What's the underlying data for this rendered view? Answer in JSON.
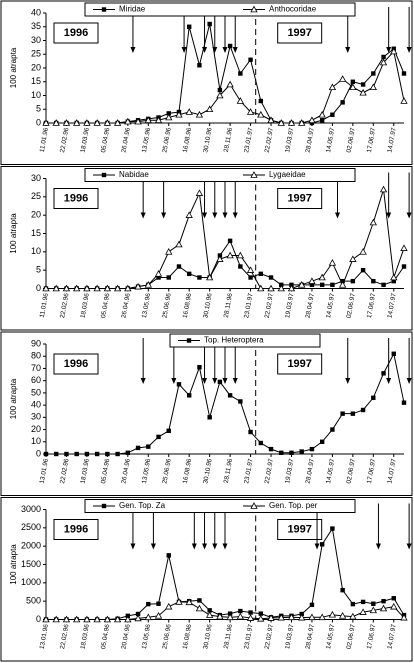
{
  "chart_data": [
    {
      "type": "line",
      "ylabel": "100 atrapta",
      "categories": [
        "11.01.96",
        null,
        "22.02.96",
        null,
        "18.03.96",
        null,
        "05.04.96",
        null,
        "26.04.96",
        null,
        "13.05.96",
        null,
        "25.06.96",
        null,
        "16.08.96",
        null,
        "30.10.96",
        null,
        "28.11.96",
        null,
        "23.01.97",
        null,
        "22.02.97",
        null,
        "19.03.97",
        null,
        "28.04.97",
        null,
        "14.05.97",
        null,
        "02.06.97",
        null,
        "17.06.97",
        null,
        "14.07.97",
        null
      ],
      "series": [
        {
          "name": "Miridae",
          "color": "#000000",
          "marker": "square",
          "values": [
            0,
            0,
            0,
            0,
            0,
            0,
            0,
            0,
            0.5,
            1,
            1.5,
            2,
            3.5,
            4,
            35,
            21,
            36,
            12,
            28,
            18,
            23,
            8,
            1,
            0,
            0,
            0,
            0,
            1,
            3,
            7.5,
            15,
            14,
            18,
            24,
            27,
            18
          ]
        },
        {
          "name": "Anthocoridae",
          "color": "#000000",
          "marker": "triangle",
          "values": [
            0,
            0,
            0,
            0,
            0,
            0,
            0,
            0,
            0.5,
            0.5,
            1,
            1,
            2,
            3,
            4,
            3,
            5,
            10,
            14,
            8,
            4,
            3,
            1,
            0,
            0,
            0,
            1,
            3,
            13,
            16,
            13,
            11,
            13,
            22,
            26,
            8
          ]
        }
      ],
      "ylim": [
        0,
        40
      ],
      "yticks": [
        0,
        5,
        10,
        15,
        20,
        25,
        30,
        35,
        40
      ],
      "year_labels": [
        "1996",
        "1997"
      ]
    },
    {
      "type": "line",
      "ylabel": "100 atrapta",
      "categories": [
        "11.01.96",
        null,
        "22.02.96",
        null,
        "18.03.96",
        null,
        "05.04.96",
        null,
        "26.04.96",
        null,
        "13.05.96",
        null,
        "25.06.96",
        null,
        "16.08.96",
        null,
        "30.10.96",
        null,
        "28.11.96",
        null,
        "23.01.97",
        null,
        "22.02.97",
        null,
        "19.03.97",
        null,
        "28.04.97",
        null,
        "14.05.97",
        null,
        "02.06.97",
        null,
        "17.06.97",
        null,
        "14.07.97",
        null
      ],
      "series": [
        {
          "name": "Nabidae",
          "color": "#000000",
          "marker": "square",
          "values": [
            0,
            0,
            0,
            0,
            0,
            0,
            0,
            0,
            0,
            0.5,
            1,
            3,
            3,
            6,
            4,
            3,
            3,
            9,
            13,
            6,
            3,
            4,
            3,
            1,
            1,
            1,
            1,
            1,
            1,
            2,
            2,
            5,
            2,
            1,
            2,
            6
          ]
        },
        {
          "name": "Lygaeidae",
          "color": "#000000",
          "marker": "triangle",
          "values": [
            0,
            0,
            0,
            0,
            0,
            0,
            0,
            0,
            0,
            0.5,
            1,
            4,
            10,
            12,
            20,
            26,
            3,
            8,
            9,
            9,
            5,
            0,
            0,
            0,
            0,
            1,
            2,
            3,
            7,
            1,
            8,
            10,
            18,
            27,
            3,
            11
          ]
        }
      ],
      "ylim": [
        0,
        30
      ],
      "yticks": [
        0,
        5,
        10,
        15,
        20,
        25,
        30
      ],
      "year_labels": [
        "1996",
        "1997"
      ]
    },
    {
      "type": "line",
      "ylabel": "100 atrapta",
      "categories": [
        "13.01.96",
        null,
        "22.02.96",
        null,
        "18.03.96",
        null,
        "05.04.96",
        null,
        "26.04.96",
        null,
        "13.05.96",
        null,
        "25.06.96",
        null,
        "16.08.96",
        null,
        "30.10.96",
        null,
        "28.11.96",
        null,
        "23.01.97",
        null,
        "22.02.97",
        null,
        "19.03.97",
        null,
        "28.04.97",
        null,
        "14.05.97",
        null,
        "02.06.97",
        null,
        "17.06.97",
        null,
        "14.07.97",
        null
      ],
      "series": [
        {
          "name": "Top. Heteroptera",
          "color": "#000000",
          "marker": "square",
          "values": [
            0,
            0,
            0,
            0,
            0,
            0,
            0,
            0,
            1,
            5,
            6,
            14,
            19,
            57,
            48,
            71,
            30,
            59,
            48,
            43,
            18,
            9,
            4,
            1,
            1,
            2,
            4,
            10,
            20,
            33,
            33,
            36,
            46,
            66,
            82,
            42
          ]
        }
      ],
      "ylim": [
        0,
        90
      ],
      "yticks": [
        0,
        10,
        20,
        30,
        40,
        50,
        60,
        70,
        80,
        90
      ],
      "year_labels": [
        "1996",
        "1997"
      ]
    },
    {
      "type": "line",
      "ylabel": "100 atrapta",
      "categories": [
        "13.01.96",
        null,
        "22.02.96",
        null,
        "18.03.96",
        null,
        "05.04.96",
        null,
        "20.04.96",
        null,
        "13.05.96",
        null,
        "25.06.96",
        null,
        "16.08.96",
        null,
        "30.10.96",
        null,
        "28.11.96",
        null,
        "23.01.97",
        null,
        "22.02.97",
        null,
        "19.03.97",
        null,
        "28.04.97",
        null,
        "14.05.97",
        null,
        "02.06.97",
        null,
        "17.06.97",
        null,
        "14.07.97",
        null
      ],
      "series": [
        {
          "name": "Gen. Top. Za",
          "color": "#000000",
          "marker": "square",
          "values": [
            0,
            0,
            0,
            0,
            0,
            0,
            0,
            20,
            100,
            150,
            420,
            430,
            1750,
            480,
            500,
            520,
            250,
            120,
            160,
            230,
            190,
            160,
            60,
            100,
            100,
            150,
            400,
            2050,
            2480,
            800,
            420,
            480,
            430,
            500,
            580,
            120
          ]
        },
        {
          "name": "Gen. Top. per",
          "color": "#000000",
          "marker": "triangle",
          "values": [
            0,
            0,
            0,
            0,
            0,
            0,
            0,
            0,
            0,
            30,
            60,
            100,
            350,
            480,
            470,
            300,
            120,
            80,
            60,
            80,
            40,
            20,
            40,
            50,
            60,
            50,
            60,
            60,
            130,
            100,
            80,
            200,
            250,
            300,
            350,
            50
          ]
        }
      ],
      "ylim": [
        0,
        3000
      ],
      "yticks": [
        0,
        500,
        1000,
        1500,
        2000,
        2500,
        3000
      ],
      "year_labels": [
        "1996",
        "1997"
      ]
    }
  ]
}
